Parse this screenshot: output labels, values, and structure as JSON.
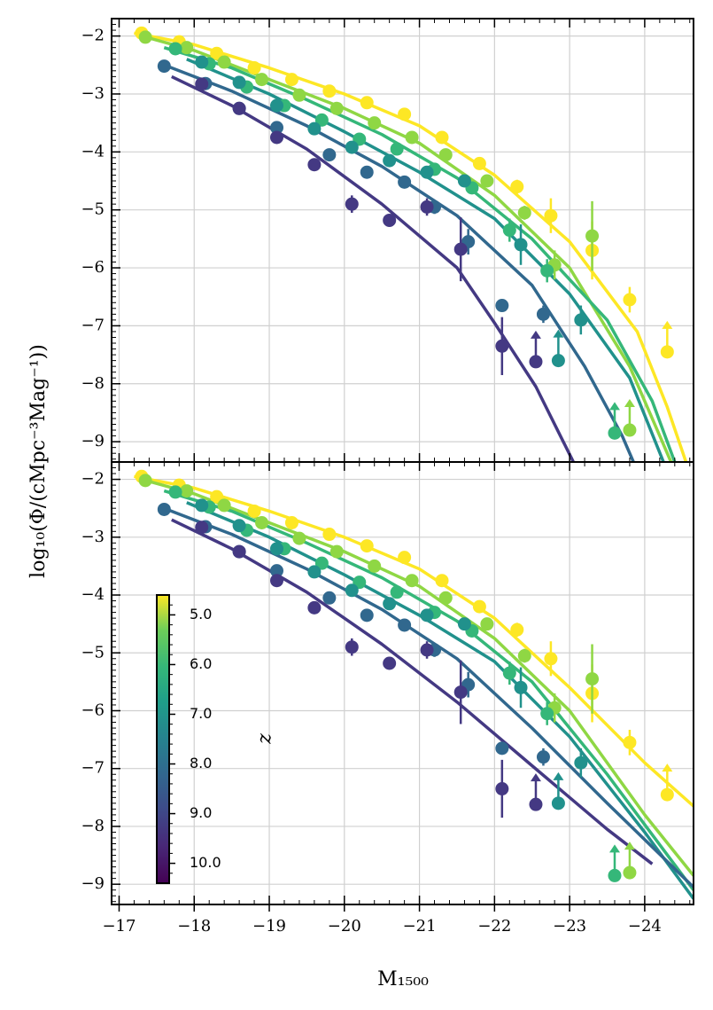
{
  "chart_data": {
    "type": "scatter",
    "xlabel": "M₁₅₀₀",
    "ylabel": "log₁₀(Φ/(cMpc⁻³Mag⁻¹))",
    "xlim": [
      -16.9,
      -24.65
    ],
    "ylim": [
      -9.35,
      -1.7
    ],
    "xticks": [
      -17,
      -18,
      -19,
      -20,
      -21,
      -22,
      -23,
      -24
    ],
    "xtick_labels": [
      "−17",
      "−18",
      "−19",
      "−20",
      "−21",
      "−22",
      "−23",
      "−24"
    ],
    "yticks": [
      -2,
      -3,
      -4,
      -5,
      -6,
      -7,
      -8,
      -9
    ],
    "ytick_labels": [
      "−2",
      "−3",
      "−4",
      "−5",
      "−6",
      "−7",
      "−8",
      "−9"
    ],
    "grid": true,
    "colorbar": {
      "label": "z",
      "range": [
        10.4,
        4.6
      ],
      "ticks": [
        5.0,
        6.0,
        7.0,
        8.0,
        9.0,
        10.0
      ],
      "tick_labels": [
        "5.0",
        "6.0",
        "7.0",
        "8.0",
        "9.0",
        "10.0"
      ],
      "location": "lower-left of bottom panel"
    },
    "series": [
      {
        "z": 5.0,
        "color": "#fde725",
        "points": [
          [
            -17.3,
            -1.95
          ],
          [
            -17.8,
            -2.1
          ],
          [
            -18.3,
            -2.3
          ],
          [
            -18.8,
            -2.55
          ],
          [
            -19.3,
            -2.75
          ],
          [
            -19.8,
            -2.95
          ],
          [
            -20.3,
            -3.15
          ],
          [
            -20.8,
            -3.35
          ],
          [
            -21.3,
            -3.75
          ],
          [
            -21.8,
            -4.2
          ],
          [
            -22.3,
            -4.6
          ],
          [
            -22.75,
            -5.1
          ],
          [
            -23.3,
            -5.7
          ],
          [
            -23.8,
            -6.55
          ],
          [
            -24.3,
            -7.45
          ]
        ],
        "errors": [
          0.05,
          0.05,
          0.05,
          0.05,
          0.05,
          0.05,
          0.05,
          0.06,
          0.08,
          0.1,
          0.12,
          0.3,
          0.5,
          0.22,
          0.05
        ],
        "lower_limits": [
          false,
          false,
          false,
          false,
          false,
          false,
          false,
          false,
          false,
          false,
          false,
          false,
          false,
          false,
          true
        ],
        "model_top": [
          [
            -17.2,
            -1.95
          ],
          [
            -18,
            -2.15
          ],
          [
            -19,
            -2.55
          ],
          [
            -20,
            -3.0
          ],
          [
            -21,
            -3.55
          ],
          [
            -22,
            -4.4
          ],
          [
            -23,
            -5.55
          ],
          [
            -23.9,
            -7.1
          ],
          [
            -24.3,
            -8.4
          ],
          [
            -24.55,
            -9.35
          ]
        ],
        "model_bottom": [
          [
            -17.2,
            -1.95
          ],
          [
            -18,
            -2.15
          ],
          [
            -19,
            -2.55
          ],
          [
            -20,
            -3.0
          ],
          [
            -21,
            -3.55
          ],
          [
            -22,
            -4.4
          ],
          [
            -23,
            -5.6
          ],
          [
            -24,
            -6.9
          ],
          [
            -24.65,
            -7.65
          ]
        ]
      },
      {
        "z": 5.9,
        "color": "#8fd744",
        "points": [
          [
            -17.35,
            -2.02
          ],
          [
            -17.9,
            -2.2
          ],
          [
            -18.4,
            -2.45
          ],
          [
            -18.9,
            -2.75
          ],
          [
            -19.4,
            -3.02
          ],
          [
            -19.9,
            -3.25
          ],
          [
            -20.4,
            -3.5
          ],
          [
            -20.9,
            -3.75
          ],
          [
            -21.35,
            -4.05
          ],
          [
            -21.9,
            -4.5
          ],
          [
            -22.4,
            -5.05
          ],
          [
            -22.8,
            -5.95
          ],
          [
            -23.3,
            -5.45
          ],
          [
            -23.8,
            -8.8
          ]
        ],
        "errors": [
          0.04,
          0.04,
          0.05,
          0.05,
          0.05,
          0.05,
          0.05,
          0.06,
          0.08,
          0.1,
          0.12,
          0.25,
          0.6,
          0.05
        ],
        "lower_limits": [
          false,
          false,
          false,
          false,
          false,
          false,
          false,
          false,
          false,
          false,
          false,
          false,
          false,
          true
        ],
        "model_top": [
          [
            -17.3,
            -2.0
          ],
          [
            -18,
            -2.25
          ],
          [
            -19,
            -2.75
          ],
          [
            -20,
            -3.25
          ],
          [
            -21,
            -3.85
          ],
          [
            -22,
            -4.75
          ],
          [
            -23,
            -6.0
          ],
          [
            -23.8,
            -7.7
          ],
          [
            -24.2,
            -8.9
          ],
          [
            -24.35,
            -9.35
          ]
        ],
        "model_bottom": [
          [
            -17.3,
            -2.0
          ],
          [
            -18,
            -2.25
          ],
          [
            -19,
            -2.75
          ],
          [
            -20,
            -3.25
          ],
          [
            -21,
            -3.85
          ],
          [
            -22,
            -4.75
          ],
          [
            -23,
            -6.0
          ],
          [
            -24,
            -7.8
          ],
          [
            -24.65,
            -8.85
          ]
        ]
      },
      {
        "z": 6.8,
        "color": "#35b779",
        "points": [
          [
            -17.75,
            -2.22
          ],
          [
            -18.2,
            -2.48
          ],
          [
            -18.7,
            -2.88
          ],
          [
            -19.2,
            -3.2
          ],
          [
            -19.7,
            -3.45
          ],
          [
            -20.2,
            -3.78
          ],
          [
            -20.7,
            -3.95
          ],
          [
            -21.2,
            -4.3
          ],
          [
            -21.7,
            -4.62
          ],
          [
            -22.2,
            -5.35
          ],
          [
            -22.7,
            -6.05
          ],
          [
            -23.6,
            -8.85
          ]
        ],
        "errors": [
          0.04,
          0.05,
          0.05,
          0.05,
          0.05,
          0.05,
          0.06,
          0.07,
          0.1,
          0.2,
          0.2,
          0.05
        ],
        "lower_limits": [
          false,
          false,
          false,
          false,
          false,
          false,
          false,
          false,
          false,
          false,
          false,
          true
        ],
        "model_top": [
          [
            -17.6,
            -2.2
          ],
          [
            -18.5,
            -2.55
          ],
          [
            -19.5,
            -3.1
          ],
          [
            -20.5,
            -3.7
          ],
          [
            -21.5,
            -4.45
          ],
          [
            -22.5,
            -5.5
          ],
          [
            -23.5,
            -6.9
          ],
          [
            -24.1,
            -8.3
          ],
          [
            -24.4,
            -9.35
          ]
        ],
        "model_bottom": [
          [
            -17.6,
            -2.2
          ],
          [
            -18.5,
            -2.55
          ],
          [
            -19.5,
            -3.1
          ],
          [
            -20.5,
            -3.7
          ],
          [
            -21.5,
            -4.45
          ],
          [
            -22.5,
            -5.5
          ],
          [
            -23.5,
            -7.1
          ],
          [
            -24.65,
            -9.1
          ]
        ]
      },
      {
        "z": 7.8,
        "color": "#21918c",
        "points": [
          [
            -18.1,
            -2.45
          ],
          [
            -18.6,
            -2.8
          ],
          [
            -19.1,
            -3.2
          ],
          [
            -19.6,
            -3.6
          ],
          [
            -20.1,
            -3.92
          ],
          [
            -20.6,
            -4.15
          ],
          [
            -21.1,
            -4.35
          ],
          [
            -21.6,
            -4.5
          ],
          [
            -22.35,
            -5.6
          ],
          [
            -22.85,
            -7.6
          ],
          [
            -23.15,
            -6.9
          ]
        ],
        "errors": [
          0.04,
          0.05,
          0.05,
          0.05,
          0.05,
          0.06,
          0.08,
          0.1,
          0.35,
          0.05,
          0.25
        ],
        "lower_limits": [
          false,
          false,
          false,
          false,
          false,
          false,
          false,
          false,
          false,
          true,
          false
        ],
        "model_top": [
          [
            -17.9,
            -2.4
          ],
          [
            -19,
            -3.0
          ],
          [
            -20,
            -3.65
          ],
          [
            -21,
            -4.35
          ],
          [
            -22,
            -5.15
          ],
          [
            -23,
            -6.45
          ],
          [
            -23.8,
            -7.9
          ],
          [
            -24.25,
            -9.35
          ]
        ],
        "model_bottom": [
          [
            -17.9,
            -2.4
          ],
          [
            -19,
            -3.0
          ],
          [
            -20,
            -3.65
          ],
          [
            -21,
            -4.35
          ],
          [
            -22,
            -5.15
          ],
          [
            -23,
            -6.45
          ],
          [
            -24,
            -8.1
          ],
          [
            -24.65,
            -9.25
          ]
        ]
      },
      {
        "z": 8.9,
        "color": "#31688e",
        "points": [
          [
            -17.6,
            -2.52
          ],
          [
            -18.15,
            -2.82
          ],
          [
            -18.6,
            -3.25
          ],
          [
            -19.1,
            -3.58
          ],
          [
            -19.8,
            -4.05
          ],
          [
            -20.3,
            -4.35
          ],
          [
            -20.8,
            -4.52
          ],
          [
            -21.2,
            -4.95
          ],
          [
            -21.65,
            -5.55
          ],
          [
            -22.1,
            -6.65
          ],
          [
            -22.65,
            -6.8
          ]
        ],
        "errors": [
          0.04,
          0.05,
          0.05,
          0.05,
          0.06,
          0.06,
          0.08,
          0.12,
          0.22,
          0.05,
          0.15
        ],
        "lower_limits": [
          false,
          false,
          false,
          false,
          false,
          false,
          false,
          false,
          false,
          false,
          false
        ],
        "model_top": [
          [
            -17.6,
            -2.5
          ],
          [
            -18.5,
            -2.95
          ],
          [
            -19.5,
            -3.55
          ],
          [
            -20.5,
            -4.25
          ],
          [
            -21.5,
            -5.1
          ],
          [
            -22.5,
            -6.3
          ],
          [
            -23.2,
            -7.7
          ],
          [
            -23.7,
            -8.9
          ],
          [
            -23.85,
            -9.35
          ]
        ],
        "model_bottom": [
          [
            -17.6,
            -2.5
          ],
          [
            -18.5,
            -2.95
          ],
          [
            -19.5,
            -3.55
          ],
          [
            -20.5,
            -4.25
          ],
          [
            -21.5,
            -5.1
          ],
          [
            -22.5,
            -6.3
          ],
          [
            -23.5,
            -7.6
          ],
          [
            -24.65,
            -9.05
          ]
        ]
      },
      {
        "z": 10.0,
        "color": "#443983",
        "points": [
          [
            -18.1,
            -2.83
          ],
          [
            -18.6,
            -3.25
          ],
          [
            -19.1,
            -3.75
          ],
          [
            -19.6,
            -4.22
          ],
          [
            -20.1,
            -4.9
          ],
          [
            -20.6,
            -5.18
          ],
          [
            -21.1,
            -4.95
          ],
          [
            -21.55,
            -5.68
          ],
          [
            -22.1,
            -7.35
          ],
          [
            -22.55,
            -7.62
          ]
        ],
        "errors": [
          0.05,
          0.05,
          0.05,
          0.06,
          0.15,
          0.08,
          0.15,
          0.55,
          0.5,
          0.05
        ],
        "lower_limits": [
          false,
          false,
          false,
          false,
          false,
          false,
          false,
          false,
          false,
          true
        ],
        "model_top": [
          [
            -17.7,
            -2.7
          ],
          [
            -18.5,
            -3.2
          ],
          [
            -19.5,
            -3.95
          ],
          [
            -20.5,
            -4.9
          ],
          [
            -21.5,
            -6.0
          ],
          [
            -22,
            -6.95
          ],
          [
            -22.55,
            -8.05
          ],
          [
            -23.05,
            -9.35
          ]
        ],
        "model_bottom": [
          [
            -17.7,
            -2.7
          ],
          [
            -18.5,
            -3.2
          ],
          [
            -19.5,
            -3.95
          ],
          [
            -20.5,
            -4.85
          ],
          [
            -21.5,
            -5.85
          ],
          [
            -22.5,
            -6.95
          ],
          [
            -23.5,
            -8.05
          ],
          [
            -24.1,
            -8.65
          ]
        ]
      }
    ]
  }
}
